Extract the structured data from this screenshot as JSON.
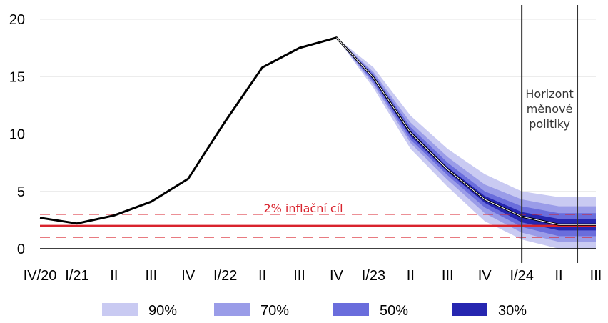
{
  "chart_data": {
    "type": "line",
    "title": "",
    "xlabel": "",
    "ylabel": "",
    "ylim": [
      0,
      20
    ],
    "yticks": [
      0,
      5,
      10,
      15,
      20
    ],
    "categories": [
      "IV/20",
      "I/21",
      "II",
      "III",
      "IV",
      "I/22",
      "II",
      "III",
      "IV",
      "I/23",
      "II",
      "III",
      "IV",
      "I/24",
      "II",
      "III"
    ],
    "grid": true,
    "colors": {
      "line": "#000000",
      "band90": "#c9caf2",
      "band70": "#9a9ce8",
      "band50": "#6a6ddc",
      "band30": "#2626b0",
      "target": "#d9232d",
      "target_band": "#d9232d",
      "horizon": "#333333"
    },
    "series": [
      {
        "name": "",
        "values": [
          2.7,
          2.2,
          2.9,
          4.1,
          6.1,
          11.1,
          15.8,
          17.5,
          18.4,
          14.9,
          10.1,
          6.9,
          4.3,
          2.8,
          2.1,
          2.1
        ]
      }
    ],
    "fan_start_index": 8,
    "fan_bands": [
      {
        "name": "90%",
        "lower": [
          18.4,
          14.0,
          8.7,
          5.4,
          2.4,
          0.8,
          0.0,
          0.0
        ],
        "upper": [
          18.4,
          15.8,
          11.6,
          8.7,
          6.5,
          5.0,
          4.5,
          4.5
        ]
      },
      {
        "name": "70%",
        "lower": [
          18.4,
          14.3,
          9.2,
          6.0,
          3.1,
          1.4,
          0.6,
          0.6
        ],
        "upper": [
          18.4,
          15.4,
          11.0,
          8.0,
          5.6,
          4.3,
          3.7,
          3.7
        ]
      },
      {
        "name": "50%",
        "lower": [
          18.4,
          14.5,
          9.5,
          6.4,
          3.6,
          1.9,
          1.1,
          1.1
        ],
        "upper": [
          18.4,
          15.2,
          10.6,
          7.5,
          5.0,
          3.7,
          3.1,
          3.1
        ]
      },
      {
        "name": "30%",
        "lower": [
          18.4,
          14.7,
          9.8,
          6.7,
          4.0,
          2.3,
          1.6,
          1.6
        ],
        "upper": [
          18.4,
          15.0,
          10.3,
          7.1,
          4.6,
          3.2,
          2.6,
          2.6
        ]
      }
    ],
    "inflation_target": {
      "value": 2,
      "band": [
        1,
        3
      ],
      "label": "2% inflační cíl"
    },
    "horizon": {
      "lines_at_index": [
        13.0,
        14.5
      ],
      "label": [
        "Horizont",
        "měnové",
        "politiky"
      ]
    },
    "legend": {
      "position": "bottom",
      "entries": [
        {
          "label": "90%",
          "color": "#c9caf2"
        },
        {
          "label": "70%",
          "color": "#9a9ce8"
        },
        {
          "label": "50%",
          "color": "#6a6ddc"
        },
        {
          "label": "30%",
          "color": "#2626b0"
        }
      ]
    }
  }
}
